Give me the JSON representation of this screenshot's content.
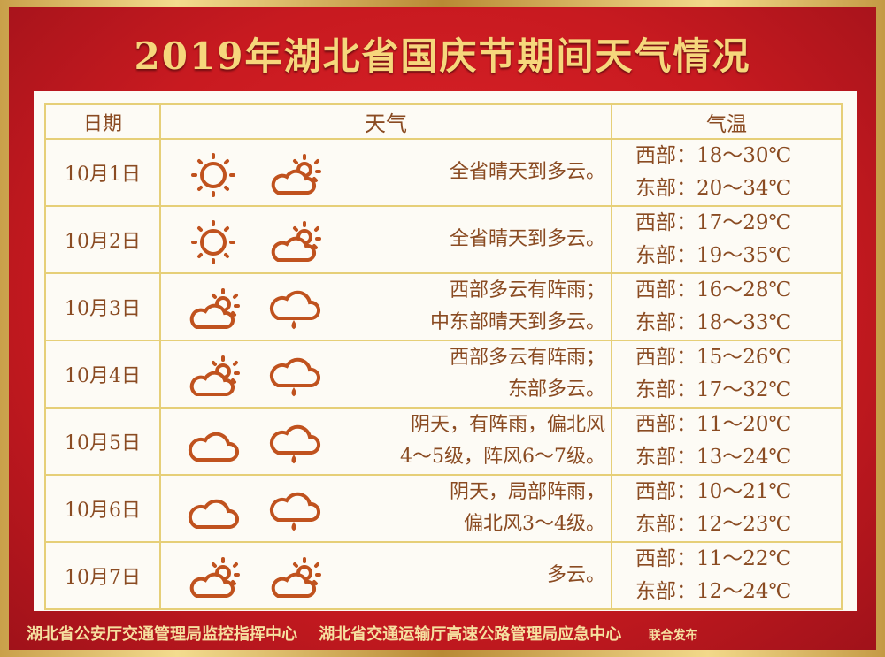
{
  "title": "2019年湖北省国庆节期间天气情况",
  "headers": {
    "date": "日期",
    "weather": "天气",
    "temperature": "气温"
  },
  "colors": {
    "icon": "#c0521e",
    "text": "#8a4b22",
    "gold": "#f6d77c",
    "red": "#c81a20"
  },
  "rows": [
    {
      "date": "10月1日",
      "icons": [
        "sun-icon",
        "partly-cloudy-icon"
      ],
      "desc": [
        "全省晴天到多云。"
      ],
      "west": "西部：18～30℃",
      "east": "东部：20～34℃"
    },
    {
      "date": "10月2日",
      "icons": [
        "sun-icon",
        "partly-cloudy-icon"
      ],
      "desc": [
        "全省晴天到多云。"
      ],
      "west": "西部：17～29℃",
      "east": "东部：19～35℃"
    },
    {
      "date": "10月3日",
      "icons": [
        "partly-cloudy-icon",
        "rain-cloud-icon"
      ],
      "desc": [
        "西部多云有阵雨；",
        "中东部晴天到多云。"
      ],
      "west": "西部：16～28℃",
      "east": "东部：18～33℃"
    },
    {
      "date": "10月4日",
      "icons": [
        "partly-cloudy-icon",
        "rain-cloud-icon"
      ],
      "desc": [
        "西部多云有阵雨；",
        "东部多云。"
      ],
      "west": "西部：15～26℃",
      "east": "东部：17～32℃"
    },
    {
      "date": "10月5日",
      "icons": [
        "cloud-icon",
        "rain-cloud-icon"
      ],
      "desc": [
        "阴天，有阵雨，偏北风",
        "4～5级，阵风6～7级。"
      ],
      "west": "西部：11～20℃",
      "east": "东部：13～24℃"
    },
    {
      "date": "10月6日",
      "icons": [
        "cloud-icon",
        "rain-cloud-icon"
      ],
      "desc": [
        "阴天，局部阵雨，",
        "偏北风3～4级。"
      ],
      "west": "西部：10～21℃",
      "east": "东部：12～23℃"
    },
    {
      "date": "10月7日",
      "icons": [
        "partly-cloudy-icon",
        "partly-cloudy-icon"
      ],
      "desc": [
        "多云。"
      ],
      "west": "西部：11～22℃",
      "east": "东部：12～24℃"
    }
  ],
  "footer": {
    "org1": "湖北省公安厅交通管理局监控指挥中心",
    "org2": "湖北省交通运输厅高速公路管理局应急中心",
    "joint": "联合发布"
  }
}
